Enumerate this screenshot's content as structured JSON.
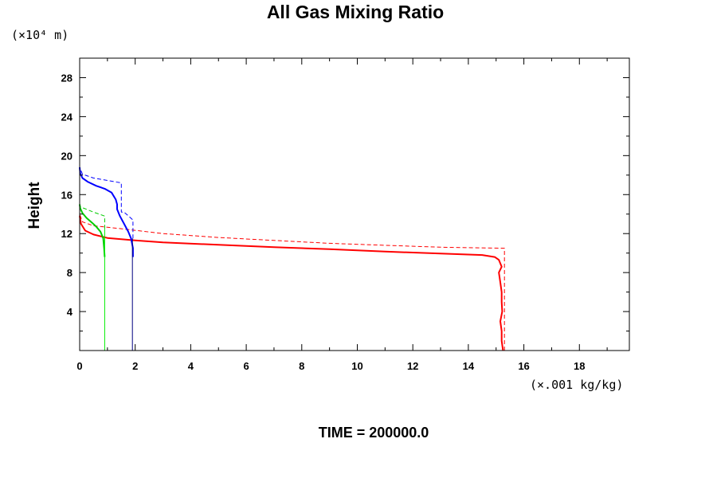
{
  "chart_data": {
    "type": "line",
    "title": "All Gas Mixing Ratio",
    "ylabel": "Height",
    "y_unit": "(×10⁴ m)",
    "x_unit": "(×.001 kg/kg)",
    "time_label": "TIME = 200000.0",
    "xlim": [
      0,
      19.8
    ],
    "ylim": [
      0,
      30
    ],
    "xticks": [
      0,
      2,
      4,
      6,
      8,
      10,
      12,
      14,
      16,
      18
    ],
    "yticks": [
      4,
      8,
      12,
      16,
      20,
      24,
      28
    ],
    "grid": false,
    "series": [
      {
        "color": "#ff0000",
        "dash": false,
        "width": 2,
        "points": [
          [
            15.25,
            0
          ],
          [
            15.2,
            1
          ],
          [
            15.2,
            2
          ],
          [
            15.15,
            3
          ],
          [
            15.22,
            4
          ],
          [
            15.2,
            5
          ],
          [
            15.2,
            6
          ],
          [
            15.15,
            7
          ],
          [
            15.1,
            8
          ],
          [
            15.2,
            8.6
          ],
          [
            15.1,
            9.3
          ],
          [
            14.95,
            9.6
          ],
          [
            14.5,
            9.8
          ],
          [
            13.0,
            9.95
          ],
          [
            11.0,
            10.15
          ],
          [
            9.0,
            10.4
          ],
          [
            7.0,
            10.6
          ],
          [
            5.0,
            10.85
          ],
          [
            3.0,
            11.1
          ],
          [
            2.0,
            11.3
          ],
          [
            1.0,
            11.55
          ],
          [
            0.5,
            11.9
          ],
          [
            0.2,
            12.3
          ],
          [
            0.05,
            13.0
          ],
          [
            0.0,
            13.8
          ]
        ]
      },
      {
        "color": "#ff0000",
        "dash": true,
        "width": 1,
        "points": [
          [
            15.3,
            0
          ],
          [
            15.3,
            10.5
          ],
          [
            13.0,
            10.6
          ],
          [
            11.0,
            10.8
          ],
          [
            9.0,
            11.0
          ],
          [
            7.0,
            11.3
          ],
          [
            5.0,
            11.6
          ],
          [
            3.0,
            12.0
          ],
          [
            1.5,
            12.5
          ],
          [
            0.5,
            12.8
          ],
          [
            0.1,
            13.2
          ],
          [
            0.0,
            14.0
          ]
        ]
      },
      {
        "color": "#0000ff",
        "dash": false,
        "width": 2,
        "points": [
          [
            1.92,
            9.6
          ],
          [
            1.92,
            10.5
          ],
          [
            1.85,
            11.5
          ],
          [
            1.75,
            12.2
          ],
          [
            1.6,
            13.0
          ],
          [
            1.45,
            13.8
          ],
          [
            1.35,
            14.5
          ],
          [
            1.35,
            15.0
          ],
          [
            1.3,
            15.5
          ],
          [
            1.15,
            16.2
          ],
          [
            0.9,
            16.6
          ],
          [
            0.6,
            16.9
          ],
          [
            0.3,
            17.3
          ],
          [
            0.1,
            17.7
          ],
          [
            0.02,
            18.2
          ],
          [
            0.0,
            18.8
          ]
        ]
      },
      {
        "color": "#0000ff",
        "dash": true,
        "width": 1,
        "points": [
          [
            1.92,
            11.5
          ],
          [
            1.92,
            13.4
          ],
          [
            1.6,
            14.2
          ],
          [
            1.5,
            14.2
          ],
          [
            1.5,
            17.2
          ],
          [
            0.5,
            17.7
          ],
          [
            0.1,
            18.1
          ],
          [
            0.0,
            18.8
          ]
        ]
      },
      {
        "color": "#000080",
        "dash": false,
        "width": 1,
        "points": [
          [
            1.9,
            0
          ],
          [
            1.9,
            11.5
          ]
        ]
      },
      {
        "color": "#00cc00",
        "dash": false,
        "width": 2,
        "points": [
          [
            0.9,
            9.6
          ],
          [
            0.88,
            10.5
          ],
          [
            0.85,
            11.5
          ],
          [
            0.75,
            12.2
          ],
          [
            0.6,
            12.7
          ],
          [
            0.45,
            13.1
          ],
          [
            0.25,
            13.6
          ],
          [
            0.1,
            14.1
          ],
          [
            0.02,
            14.6
          ],
          [
            0.0,
            15.0
          ]
        ]
      },
      {
        "color": "#00cc00",
        "dash": true,
        "width": 1,
        "points": [
          [
            0.9,
            12.5
          ],
          [
            0.9,
            13.8
          ],
          [
            0.5,
            14.2
          ],
          [
            0.15,
            14.6
          ],
          [
            0.0,
            14.8
          ]
        ]
      },
      {
        "color": "#00ee00",
        "dash": false,
        "width": 1,
        "points": [
          [
            0.9,
            0
          ],
          [
            0.9,
            12.5
          ]
        ]
      },
      {
        "color": "#00ee00",
        "dash": false,
        "width": 1,
        "points": [
          [
            0.0,
            15.0
          ],
          [
            0.0,
            30.0
          ]
        ]
      }
    ]
  }
}
